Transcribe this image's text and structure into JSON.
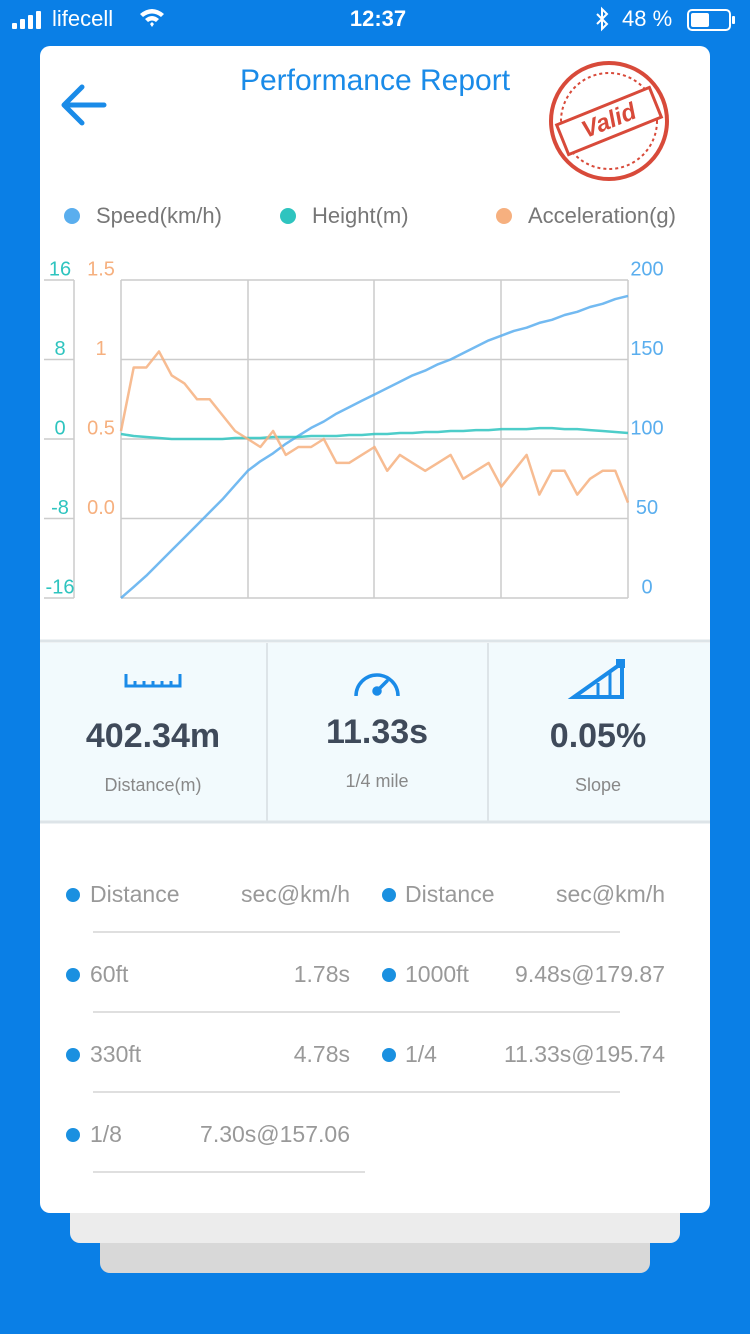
{
  "status_bar": {
    "carrier": "lifecell",
    "time": "12:37",
    "battery": "48 %"
  },
  "header": {
    "title": "Performance Report",
    "stamp": "Valid"
  },
  "chart_data": {
    "type": "line",
    "grid": true,
    "ylim": [
      -16,
      16
    ],
    "yticks": [
      -16,
      -8,
      0,
      8,
      16
    ],
    "y2lim": [
      0,
      200
    ],
    "y2ticks": [
      0,
      50,
      100,
      150,
      200
    ],
    "y3lim": [
      -0.5,
      1.5
    ],
    "y3ticks": [
      {
        "value": 0,
        "label": "0.0"
      },
      0.5,
      1,
      1.5
    ],
    "series": [
      {
        "name": "Speed(km/h)",
        "color": "#5aaeee",
        "axis": "y2",
        "values": [
          0,
          7,
          14,
          22,
          30,
          38,
          46,
          54,
          62,
          71,
          80,
          86,
          91,
          97,
          102,
          107,
          111,
          116,
          120,
          124,
          128,
          132,
          136,
          140,
          143,
          147,
          150,
          154,
          158,
          162,
          165,
          168,
          170,
          173,
          175,
          178,
          180,
          183,
          185,
          188,
          190
        ]
      },
      {
        "name": "Height(m)",
        "color": "#2ec4bf",
        "axis": "y",
        "values": [
          0.5,
          0.3,
          0.2,
          0.1,
          0,
          0,
          0,
          0,
          0,
          0.1,
          0.1,
          0.1,
          0.2,
          0.2,
          0.2,
          0.3,
          0.3,
          0.3,
          0.4,
          0.4,
          0.5,
          0.5,
          0.6,
          0.6,
          0.7,
          0.7,
          0.8,
          0.8,
          0.9,
          0.9,
          1,
          1,
          1,
          1.1,
          1.1,
          1,
          1,
          0.9,
          0.8,
          0.7,
          0.6
        ]
      },
      {
        "name": "Acceleration(g)",
        "color": "#f6b07f",
        "axis": "y3",
        "values": [
          0.55,
          0.95,
          0.95,
          1.05,
          0.9,
          0.85,
          0.75,
          0.75,
          0.65,
          0.55,
          0.5,
          0.45,
          0.55,
          0.4,
          0.45,
          0.45,
          0.5,
          0.35,
          0.35,
          0.4,
          0.45,
          0.3,
          0.4,
          0.35,
          0.3,
          0.35,
          0.4,
          0.25,
          0.3,
          0.35,
          0.2,
          0.3,
          0.4,
          0.15,
          0.3,
          0.3,
          0.15,
          0.25,
          0.3,
          0.3,
          0.1
        ]
      }
    ]
  },
  "stats": [
    {
      "value": "402.34m",
      "label": "Distance(m)"
    },
    {
      "value": "11.33s",
      "label": "1/4 mile"
    },
    {
      "value": "0.05%",
      "label": "Slope"
    }
  ],
  "splits": {
    "headers": [
      "Distance",
      "sec@km/h"
    ],
    "left": [
      [
        "60ft",
        "1.78s"
      ],
      [
        "330ft",
        "4.78s"
      ],
      [
        "1/8",
        "7.30s@157.06"
      ]
    ],
    "right": [
      [
        "1000ft",
        "9.48s@179.87"
      ],
      [
        "1/4",
        "11.33s@195.74"
      ]
    ]
  }
}
